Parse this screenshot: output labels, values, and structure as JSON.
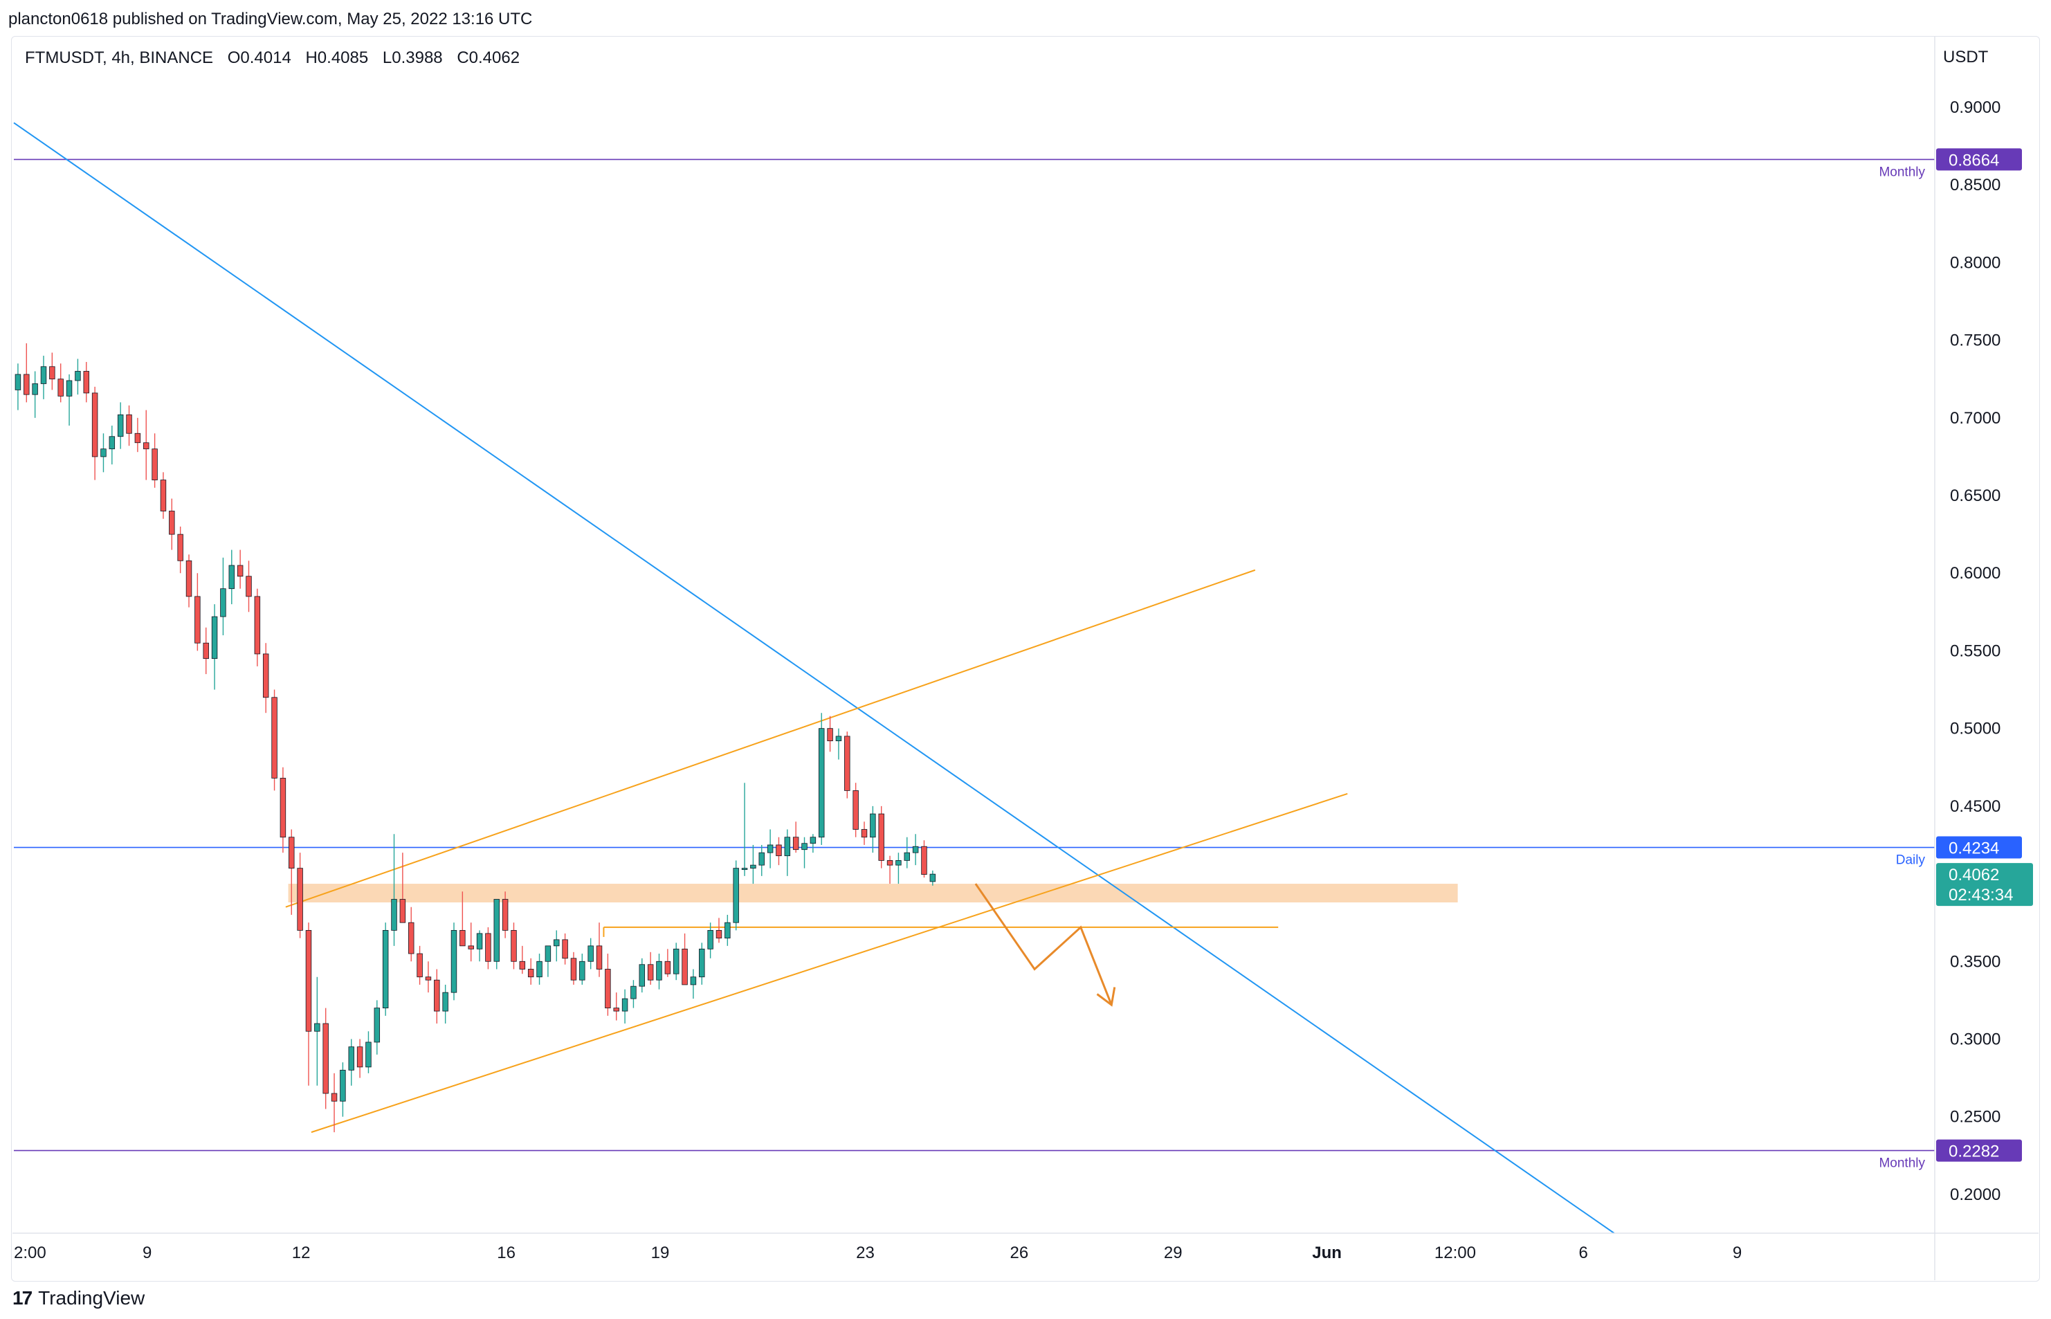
{
  "header": {
    "published_text": "plancton0618 published on TradingView.com, May 25, 2022 13:16 UTC"
  },
  "legend": {
    "symbol": "FTMUSDT, 4h, BINANCE",
    "open": "O0.4014",
    "high": "H0.4085",
    "low": "L0.3988",
    "close": "C0.4062"
  },
  "footer": {
    "brand": "TradingView",
    "logo_glyph": "17"
  },
  "colors": {
    "up": "#26a69a",
    "down": "#ef5350",
    "trendline_blue": "#2196f3",
    "channel_orange": "#f7a21b",
    "zone_fill": "#fbd4ad",
    "monthly_purple": "#673ab7",
    "daily_blue": "#2962ff",
    "last_price_green": "#26a69a"
  },
  "chart_data": {
    "type": "candlestick",
    "symbol": "FTMUSDT",
    "interval": "4h",
    "exchange": "BINANCE",
    "y_axis_currency": "USDT",
    "ylim": [
      0.175,
      0.945
    ],
    "y_ticks": [
      "0.9000",
      "0.8500",
      "0.8000",
      "0.7500",
      "0.7000",
      "0.6500",
      "0.6000",
      "0.5500",
      "0.5000",
      "0.4500",
      "0.3500",
      "0.3000",
      "0.2500",
      "0.2000"
    ],
    "x_tick_labels": [
      {
        "label": "2:00",
        "day": 6.4
      },
      {
        "label": "9",
        "day": 9
      },
      {
        "label": "12",
        "day": 12
      },
      {
        "label": "16",
        "day": 16
      },
      {
        "label": "19",
        "day": 19
      },
      {
        "label": "23",
        "day": 23
      },
      {
        "label": "26",
        "day": 26
      },
      {
        "label": "29",
        "day": 29
      },
      {
        "label": "Jun",
        "day": 32
      },
      {
        "label": "12:00",
        "day": 34.5
      },
      {
        "label": "6",
        "day": 37
      },
      {
        "label": "9",
        "day": 40
      }
    ],
    "xlim_days": [
      6.4,
      43.85
    ],
    "horizontal_levels": [
      {
        "label": "Monthly",
        "value": 0.8664,
        "price_label": "0.8664",
        "style": "monthly"
      },
      {
        "label": "Daily",
        "value": 0.4234,
        "price_label": "0.4234",
        "style": "daily"
      },
      {
        "label": "Monthly",
        "value": 0.2282,
        "price_label": "0.2282",
        "style": "monthly"
      }
    ],
    "last_price": {
      "value": 0.4062,
      "price_label": "0.4062",
      "countdown": "02:43:34"
    },
    "candles_4h": [
      [
        0.718,
        0.735,
        0.705,
        0.728
      ],
      [
        0.728,
        0.748,
        0.71,
        0.715
      ],
      [
        0.715,
        0.73,
        0.7,
        0.722
      ],
      [
        0.722,
        0.74,
        0.712,
        0.733
      ],
      [
        0.733,
        0.742,
        0.718,
        0.725
      ],
      [
        0.725,
        0.735,
        0.71,
        0.714
      ],
      [
        0.714,
        0.728,
        0.695,
        0.724
      ],
      [
        0.724,
        0.738,
        0.715,
        0.73
      ],
      [
        0.73,
        0.736,
        0.71,
        0.716
      ],
      [
        0.716,
        0.72,
        0.66,
        0.675
      ],
      [
        0.675,
        0.69,
        0.665,
        0.68
      ],
      [
        0.68,
        0.695,
        0.67,
        0.688
      ],
      [
        0.688,
        0.71,
        0.68,
        0.702
      ],
      [
        0.702,
        0.708,
        0.682,
        0.69
      ],
      [
        0.69,
        0.7,
        0.678,
        0.684
      ],
      [
        0.684,
        0.705,
        0.66,
        0.68
      ],
      [
        0.68,
        0.69,
        0.655,
        0.66
      ],
      [
        0.66,
        0.665,
        0.635,
        0.64
      ],
      [
        0.64,
        0.648,
        0.615,
        0.625
      ],
      [
        0.625,
        0.63,
        0.6,
        0.608
      ],
      [
        0.608,
        0.612,
        0.578,
        0.585
      ],
      [
        0.585,
        0.6,
        0.55,
        0.555
      ],
      [
        0.555,
        0.565,
        0.535,
        0.545
      ],
      [
        0.545,
        0.58,
        0.525,
        0.572
      ],
      [
        0.572,
        0.61,
        0.56,
        0.59
      ],
      [
        0.59,
        0.615,
        0.58,
        0.605
      ],
      [
        0.605,
        0.615,
        0.59,
        0.598
      ],
      [
        0.598,
        0.608,
        0.575,
        0.585
      ],
      [
        0.585,
        0.59,
        0.54,
        0.548
      ],
      [
        0.548,
        0.555,
        0.51,
        0.52
      ],
      [
        0.52,
        0.525,
        0.46,
        0.468
      ],
      [
        0.468,
        0.475,
        0.42,
        0.43
      ],
      [
        0.43,
        0.435,
        0.38,
        0.41
      ],
      [
        0.41,
        0.42,
        0.365,
        0.37
      ],
      [
        0.37,
        0.375,
        0.27,
        0.305
      ],
      [
        0.305,
        0.34,
        0.27,
        0.31
      ],
      [
        0.31,
        0.32,
        0.255,
        0.265
      ],
      [
        0.265,
        0.278,
        0.24,
        0.26
      ],
      [
        0.26,
        0.285,
        0.25,
        0.28
      ],
      [
        0.28,
        0.3,
        0.27,
        0.295
      ],
      [
        0.295,
        0.3,
        0.275,
        0.282
      ],
      [
        0.282,
        0.305,
        0.278,
        0.298
      ],
      [
        0.298,
        0.325,
        0.29,
        0.32
      ],
      [
        0.32,
        0.375,
        0.315,
        0.37
      ],
      [
        0.37,
        0.432,
        0.36,
        0.39
      ],
      [
        0.39,
        0.42,
        0.375,
        0.375
      ],
      [
        0.375,
        0.385,
        0.35,
        0.355
      ],
      [
        0.355,
        0.36,
        0.335,
        0.34
      ],
      [
        0.34,
        0.35,
        0.33,
        0.338
      ],
      [
        0.338,
        0.345,
        0.31,
        0.318
      ],
      [
        0.318,
        0.335,
        0.31,
        0.33
      ],
      [
        0.33,
        0.375,
        0.325,
        0.37
      ],
      [
        0.37,
        0.395,
        0.365,
        0.36
      ],
      [
        0.36,
        0.375,
        0.35,
        0.358
      ],
      [
        0.358,
        0.37,
        0.35,
        0.368
      ],
      [
        0.368,
        0.372,
        0.345,
        0.35
      ],
      [
        0.35,
        0.368,
        0.345,
        0.39
      ],
      [
        0.39,
        0.395,
        0.365,
        0.37
      ],
      [
        0.37,
        0.375,
        0.345,
        0.35
      ],
      [
        0.35,
        0.36,
        0.342,
        0.345
      ],
      [
        0.345,
        0.352,
        0.335,
        0.34
      ],
      [
        0.34,
        0.355,
        0.335,
        0.35
      ],
      [
        0.35,
        0.36,
        0.34,
        0.36
      ],
      [
        0.36,
        0.37,
        0.35,
        0.364
      ],
      [
        0.364,
        0.368,
        0.348,
        0.352
      ],
      [
        0.352,
        0.356,
        0.335,
        0.338
      ],
      [
        0.338,
        0.355,
        0.335,
        0.35
      ],
      [
        0.35,
        0.365,
        0.345,
        0.36
      ],
      [
        0.36,
        0.375,
        0.34,
        0.345
      ],
      [
        0.345,
        0.355,
        0.315,
        0.32
      ],
      [
        0.32,
        0.33,
        0.312,
        0.318
      ],
      [
        0.318,
        0.332,
        0.31,
        0.326
      ],
      [
        0.326,
        0.338,
        0.32,
        0.334
      ],
      [
        0.334,
        0.352,
        0.33,
        0.348
      ],
      [
        0.348,
        0.356,
        0.335,
        0.338
      ],
      [
        0.338,
        0.355,
        0.332,
        0.35
      ],
      [
        0.35,
        0.358,
        0.34,
        0.342
      ],
      [
        0.342,
        0.362,
        0.338,
        0.358
      ],
      [
        0.358,
        0.368,
        0.34,
        0.335
      ],
      [
        0.335,
        0.345,
        0.326,
        0.34
      ],
      [
        0.34,
        0.362,
        0.335,
        0.358
      ],
      [
        0.358,
        0.375,
        0.352,
        0.37
      ],
      [
        0.37,
        0.378,
        0.362,
        0.365
      ],
      [
        0.365,
        0.38,
        0.36,
        0.375
      ],
      [
        0.375,
        0.415,
        0.37,
        0.41
      ],
      [
        0.41,
        0.465,
        0.405,
        0.41
      ],
      [
        0.41,
        0.425,
        0.4,
        0.412
      ],
      [
        0.412,
        0.425,
        0.405,
        0.42
      ],
      [
        0.42,
        0.435,
        0.41,
        0.425
      ],
      [
        0.425,
        0.43,
        0.412,
        0.418
      ],
      [
        0.418,
        0.435,
        0.405,
        0.43
      ],
      [
        0.43,
        0.44,
        0.42,
        0.422
      ],
      [
        0.422,
        0.43,
        0.41,
        0.426
      ],
      [
        0.426,
        0.432,
        0.42,
        0.43
      ],
      [
        0.43,
        0.51,
        0.425,
        0.5
      ],
      [
        0.5,
        0.508,
        0.485,
        0.492
      ],
      [
        0.492,
        0.5,
        0.48,
        0.495
      ],
      [
        0.495,
        0.498,
        0.455,
        0.46
      ],
      [
        0.46,
        0.465,
        0.43,
        0.435
      ],
      [
        0.435,
        0.44,
        0.425,
        0.43
      ],
      [
        0.43,
        0.45,
        0.42,
        0.445
      ],
      [
        0.445,
        0.45,
        0.41,
        0.415
      ],
      [
        0.415,
        0.418,
        0.4,
        0.412
      ],
      [
        0.412,
        0.42,
        0.4,
        0.415
      ],
      [
        0.415,
        0.43,
        0.41,
        0.42
      ],
      [
        0.42,
        0.432,
        0.412,
        0.424
      ],
      [
        0.424,
        0.428,
        0.404,
        0.406
      ],
      [
        0.4014,
        0.4085,
        0.3988,
        0.4062
      ]
    ],
    "annotations": {
      "descending_trendline": {
        "start": {
          "day": 6.4,
          "price": 0.89
        },
        "end": {
          "day": 37.6,
          "price": 0.175
        }
      },
      "channel_upper": {
        "start": {
          "day": 11.7,
          "price": 0.385
        },
        "end": {
          "day": 30.6,
          "price": 0.602
        }
      },
      "channel_lower": {
        "start": {
          "day": 12.2,
          "price": 0.24
        },
        "end": {
          "day": 32.4,
          "price": 0.458
        }
      },
      "support_zone": {
        "day_start": 11.75,
        "day_end": 34.55,
        "low": 0.388,
        "high": 0.4
      },
      "flat_line": {
        "day_start": 17.9,
        "day_end": 31.05,
        "price": 0.372
      },
      "projection_path": [
        {
          "day": 25.15,
          "price": 0.4
        },
        {
          "day": 26.3,
          "price": 0.345
        },
        {
          "day": 27.2,
          "price": 0.372
        },
        {
          "day": 27.8,
          "price": 0.322
        }
      ]
    }
  }
}
